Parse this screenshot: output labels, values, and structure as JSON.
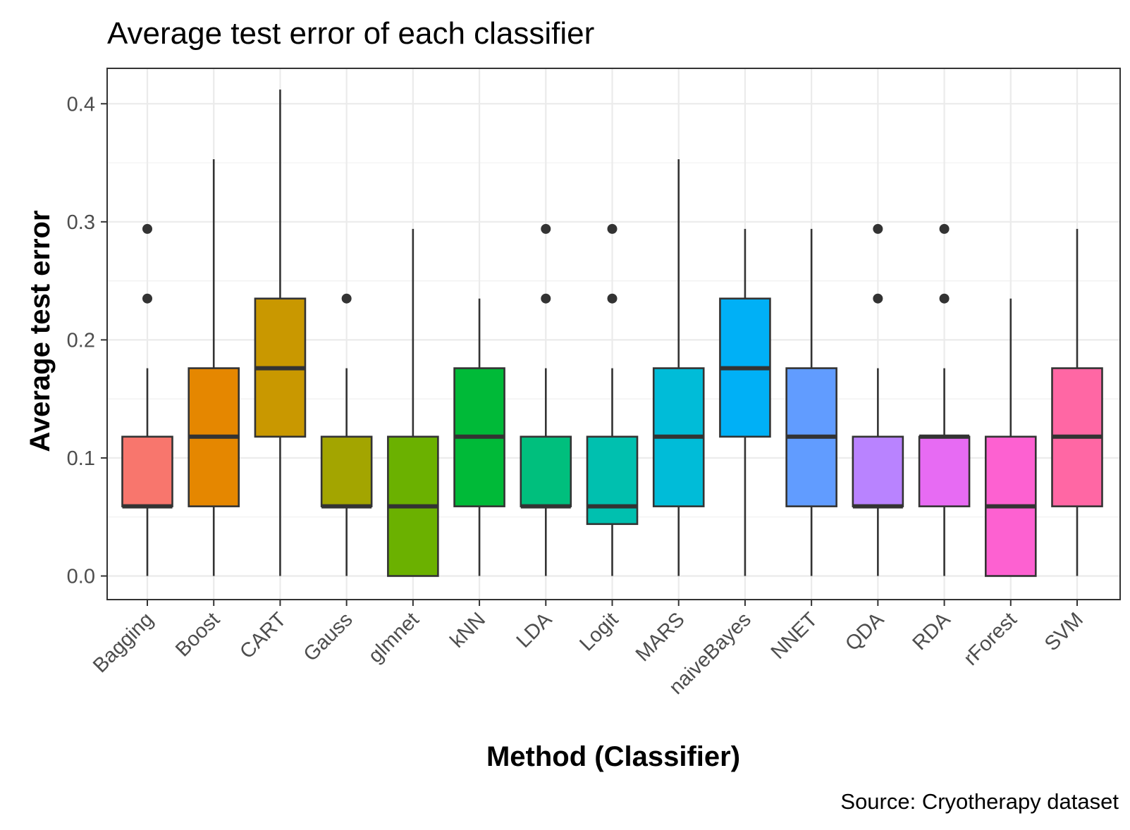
{
  "chart_data": {
    "type": "box",
    "title": "Average test error of each classifier",
    "xlabel": "Method (Classifier)",
    "ylabel": "Average test error",
    "caption": "Source: Cryotherapy dataset",
    "ylim": [
      -0.02,
      0.43
    ],
    "yticks": [
      0.0,
      0.1,
      0.2,
      0.3,
      0.4
    ],
    "ytick_labels": [
      "0.0",
      "0.1",
      "0.2",
      "0.3",
      "0.4"
    ],
    "grid": true,
    "legend": "none",
    "categories": [
      "Bagging",
      "Boost",
      "CART",
      "Gauss",
      "glmnet",
      "kNN",
      "LDA",
      "Logit",
      "MARS",
      "naiveBayes",
      "NNET",
      "QDA",
      "RDA",
      "rForest",
      "SVM"
    ],
    "boxes": [
      {
        "category": "Bagging",
        "color": "#F8766D",
        "whisker_low": 0.0,
        "q1": 0.059,
        "median": 0.059,
        "q3": 0.118,
        "whisker_high": 0.176,
        "outliers": [
          0.235,
          0.294
        ]
      },
      {
        "category": "Boost",
        "color": "#E58700",
        "whisker_low": 0.0,
        "q1": 0.059,
        "median": 0.118,
        "q3": 0.176,
        "whisker_high": 0.353,
        "outliers": []
      },
      {
        "category": "CART",
        "color": "#C99800",
        "whisker_low": 0.0,
        "q1": 0.118,
        "median": 0.176,
        "q3": 0.235,
        "whisker_high": 0.412,
        "outliers": []
      },
      {
        "category": "Gauss",
        "color": "#A3A500",
        "whisker_low": 0.0,
        "q1": 0.059,
        "median": 0.059,
        "q3": 0.118,
        "whisker_high": 0.176,
        "outliers": [
          0.235
        ]
      },
      {
        "category": "glmnet",
        "color": "#6BB100",
        "whisker_low": 0.0,
        "q1": 0.0,
        "median": 0.059,
        "q3": 0.118,
        "whisker_high": 0.294,
        "outliers": []
      },
      {
        "category": "kNN",
        "color": "#00BA38",
        "whisker_low": 0.0,
        "q1": 0.059,
        "median": 0.118,
        "q3": 0.176,
        "whisker_high": 0.235,
        "outliers": []
      },
      {
        "category": "LDA",
        "color": "#00BF7D",
        "whisker_low": 0.0,
        "q1": 0.059,
        "median": 0.059,
        "q3": 0.118,
        "whisker_high": 0.176,
        "outliers": [
          0.235,
          0.294
        ]
      },
      {
        "category": "Logit",
        "color": "#00C0AF",
        "whisker_low": 0.0,
        "q1": 0.044,
        "median": 0.059,
        "q3": 0.118,
        "whisker_high": 0.176,
        "outliers": [
          0.235,
          0.294
        ]
      },
      {
        "category": "MARS",
        "color": "#00BCD8",
        "whisker_low": 0.0,
        "q1": 0.059,
        "median": 0.118,
        "q3": 0.176,
        "whisker_high": 0.353,
        "outliers": []
      },
      {
        "category": "naiveBayes",
        "color": "#00B0F6",
        "whisker_low": 0.0,
        "q1": 0.118,
        "median": 0.176,
        "q3": 0.235,
        "whisker_high": 0.294,
        "outliers": []
      },
      {
        "category": "NNET",
        "color": "#619CFF",
        "whisker_low": 0.0,
        "q1": 0.059,
        "median": 0.118,
        "q3": 0.176,
        "whisker_high": 0.294,
        "outliers": []
      },
      {
        "category": "QDA",
        "color": "#B983FF",
        "whisker_low": 0.0,
        "q1": 0.059,
        "median": 0.059,
        "q3": 0.118,
        "whisker_high": 0.176,
        "outliers": [
          0.235,
          0.294
        ]
      },
      {
        "category": "RDA",
        "color": "#E76BF3",
        "whisker_low": 0.0,
        "q1": 0.059,
        "median": 0.118,
        "q3": 0.118,
        "whisker_high": 0.176,
        "outliers": [
          0.235,
          0.294
        ]
      },
      {
        "category": "rForest",
        "color": "#FD61D1",
        "whisker_low": 0.0,
        "q1": 0.0,
        "median": 0.059,
        "q3": 0.118,
        "whisker_high": 0.235,
        "outliers": []
      },
      {
        "category": "SVM",
        "color": "#FF67A4",
        "whisker_low": 0.0,
        "q1": 0.059,
        "median": 0.118,
        "q3": 0.176,
        "whisker_high": 0.294,
        "outliers": []
      }
    ]
  }
}
